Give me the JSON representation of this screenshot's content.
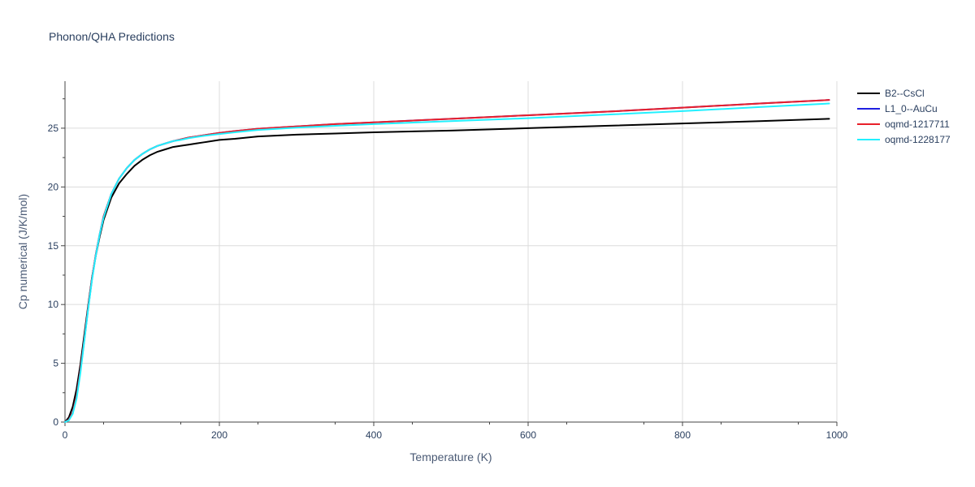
{
  "chart_data": {
    "type": "line",
    "title": "Phonon/QHA Predictions",
    "xlabel": "Temperature (K)",
    "ylabel": "Cp numerical (J/K/mol)",
    "xlim": [
      0,
      1000
    ],
    "ylim": [
      0,
      29
    ],
    "xticks": [
      0,
      200,
      400,
      600,
      800,
      1000
    ],
    "yticks": [
      0,
      5,
      10,
      15,
      20,
      25
    ],
    "grid": true,
    "legend_position": "top-right",
    "series": [
      {
        "name": "B2--CsCl",
        "color": "#000000",
        "x": [
          0,
          5,
          10,
          15,
          20,
          25,
          30,
          35,
          40,
          45,
          50,
          60,
          70,
          80,
          90,
          100,
          110,
          120,
          130,
          140,
          150,
          160,
          170,
          180,
          200,
          220,
          250,
          300,
          350,
          400,
          500,
          600,
          700,
          800,
          900,
          990
        ],
        "y": [
          0,
          0.4,
          1.3,
          2.8,
          4.9,
          7.4,
          9.9,
          12.3,
          14.2,
          15.8,
          17.2,
          19.1,
          20.3,
          21.1,
          21.8,
          22.3,
          22.7,
          23.0,
          23.2,
          23.4,
          23.5,
          23.6,
          23.7,
          23.8,
          24.0,
          24.1,
          24.3,
          24.45,
          24.55,
          24.65,
          24.8,
          25.0,
          25.2,
          25.4,
          25.6,
          25.8
        ]
      },
      {
        "name": "L1_0--AuCu",
        "color": "#1f1fe0",
        "x": [
          0,
          5,
          10,
          15,
          20,
          25,
          30,
          35,
          40,
          45,
          50,
          60,
          70,
          80,
          90,
          100,
          110,
          120,
          130,
          140,
          150,
          160,
          170,
          180,
          200,
          220,
          250,
          300,
          350,
          400,
          500,
          600,
          700,
          800,
          900,
          990
        ],
        "y": [
          0,
          0.2,
          0.8,
          2.2,
          4.4,
          7.0,
          9.7,
          12.2,
          14.3,
          16.0,
          17.5,
          19.4,
          20.7,
          21.6,
          22.3,
          22.8,
          23.2,
          23.5,
          23.7,
          23.9,
          24.05,
          24.2,
          24.3,
          24.4,
          24.6,
          24.75,
          24.95,
          25.15,
          25.35,
          25.5,
          25.8,
          26.1,
          26.4,
          26.75,
          27.1,
          27.4
        ]
      },
      {
        "name": "oqmd-1217711",
        "color": "#e8202a",
        "x": [
          0,
          5,
          10,
          15,
          20,
          25,
          30,
          35,
          40,
          45,
          50,
          60,
          70,
          80,
          90,
          100,
          110,
          120,
          130,
          140,
          150,
          160,
          170,
          180,
          200,
          220,
          250,
          300,
          350,
          400,
          500,
          600,
          700,
          800,
          900,
          990
        ],
        "y": [
          0,
          0.2,
          0.8,
          2.2,
          4.4,
          7.0,
          9.7,
          12.2,
          14.3,
          16.0,
          17.5,
          19.4,
          20.7,
          21.6,
          22.3,
          22.8,
          23.2,
          23.5,
          23.7,
          23.9,
          24.05,
          24.2,
          24.3,
          24.4,
          24.6,
          24.75,
          24.95,
          25.15,
          25.35,
          25.5,
          25.8,
          26.1,
          26.4,
          26.75,
          27.1,
          27.4
        ]
      },
      {
        "name": "oqmd-1228177",
        "color": "#22f0ff",
        "x": [
          0,
          5,
          10,
          15,
          20,
          25,
          30,
          35,
          40,
          45,
          50,
          60,
          70,
          80,
          90,
          100,
          110,
          120,
          130,
          140,
          150,
          160,
          170,
          180,
          200,
          220,
          250,
          300,
          350,
          400,
          500,
          600,
          700,
          800,
          900,
          990
        ],
        "y": [
          0,
          0.15,
          0.7,
          2.0,
          4.2,
          6.9,
          9.6,
          12.1,
          14.2,
          16.0,
          17.4,
          19.4,
          20.7,
          21.6,
          22.3,
          22.8,
          23.2,
          23.5,
          23.7,
          23.9,
          24.0,
          24.15,
          24.25,
          24.35,
          24.5,
          24.65,
          24.85,
          25.05,
          25.2,
          25.35,
          25.6,
          25.85,
          26.15,
          26.45,
          26.8,
          27.1
        ]
      }
    ]
  }
}
